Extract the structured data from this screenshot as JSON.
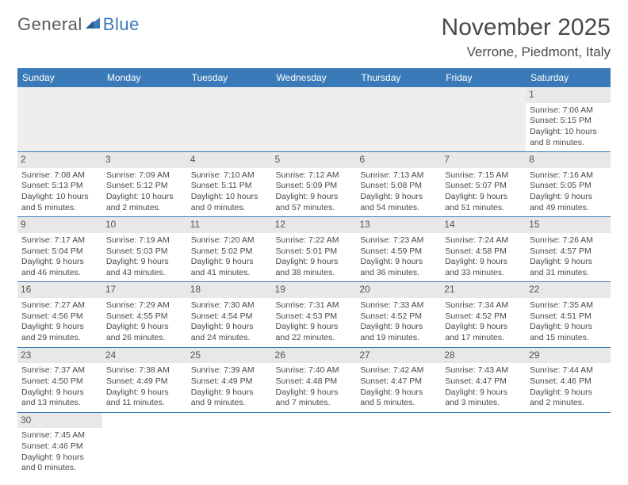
{
  "logo": {
    "text_a": "General",
    "text_b": "Blue"
  },
  "title": "November 2025",
  "location": "Verrone, Piedmont, Italy",
  "colors": {
    "accent": "#3a7ab8",
    "header_bg": "#3a7ab8",
    "daynum_bg": "#e8e8e8",
    "text": "#4a4a4a"
  },
  "weekdays": [
    "Sunday",
    "Monday",
    "Tuesday",
    "Wednesday",
    "Thursday",
    "Friday",
    "Saturday"
  ],
  "weeks": [
    [
      null,
      null,
      null,
      null,
      null,
      null,
      {
        "n": "1",
        "sr": "Sunrise: 7:06 AM",
        "ss": "Sunset: 5:15 PM",
        "dl": "Daylight: 10 hours and 8 minutes."
      }
    ],
    [
      {
        "n": "2",
        "sr": "Sunrise: 7:08 AM",
        "ss": "Sunset: 5:13 PM",
        "dl": "Daylight: 10 hours and 5 minutes."
      },
      {
        "n": "3",
        "sr": "Sunrise: 7:09 AM",
        "ss": "Sunset: 5:12 PM",
        "dl": "Daylight: 10 hours and 2 minutes."
      },
      {
        "n": "4",
        "sr": "Sunrise: 7:10 AM",
        "ss": "Sunset: 5:11 PM",
        "dl": "Daylight: 10 hours and 0 minutes."
      },
      {
        "n": "5",
        "sr": "Sunrise: 7:12 AM",
        "ss": "Sunset: 5:09 PM",
        "dl": "Daylight: 9 hours and 57 minutes."
      },
      {
        "n": "6",
        "sr": "Sunrise: 7:13 AM",
        "ss": "Sunset: 5:08 PM",
        "dl": "Daylight: 9 hours and 54 minutes."
      },
      {
        "n": "7",
        "sr": "Sunrise: 7:15 AM",
        "ss": "Sunset: 5:07 PM",
        "dl": "Daylight: 9 hours and 51 minutes."
      },
      {
        "n": "8",
        "sr": "Sunrise: 7:16 AM",
        "ss": "Sunset: 5:05 PM",
        "dl": "Daylight: 9 hours and 49 minutes."
      }
    ],
    [
      {
        "n": "9",
        "sr": "Sunrise: 7:17 AM",
        "ss": "Sunset: 5:04 PM",
        "dl": "Daylight: 9 hours and 46 minutes."
      },
      {
        "n": "10",
        "sr": "Sunrise: 7:19 AM",
        "ss": "Sunset: 5:03 PM",
        "dl": "Daylight: 9 hours and 43 minutes."
      },
      {
        "n": "11",
        "sr": "Sunrise: 7:20 AM",
        "ss": "Sunset: 5:02 PM",
        "dl": "Daylight: 9 hours and 41 minutes."
      },
      {
        "n": "12",
        "sr": "Sunrise: 7:22 AM",
        "ss": "Sunset: 5:01 PM",
        "dl": "Daylight: 9 hours and 38 minutes."
      },
      {
        "n": "13",
        "sr": "Sunrise: 7:23 AM",
        "ss": "Sunset: 4:59 PM",
        "dl": "Daylight: 9 hours and 36 minutes."
      },
      {
        "n": "14",
        "sr": "Sunrise: 7:24 AM",
        "ss": "Sunset: 4:58 PM",
        "dl": "Daylight: 9 hours and 33 minutes."
      },
      {
        "n": "15",
        "sr": "Sunrise: 7:26 AM",
        "ss": "Sunset: 4:57 PM",
        "dl": "Daylight: 9 hours and 31 minutes."
      }
    ],
    [
      {
        "n": "16",
        "sr": "Sunrise: 7:27 AM",
        "ss": "Sunset: 4:56 PM",
        "dl": "Daylight: 9 hours and 29 minutes."
      },
      {
        "n": "17",
        "sr": "Sunrise: 7:29 AM",
        "ss": "Sunset: 4:55 PM",
        "dl": "Daylight: 9 hours and 26 minutes."
      },
      {
        "n": "18",
        "sr": "Sunrise: 7:30 AM",
        "ss": "Sunset: 4:54 PM",
        "dl": "Daylight: 9 hours and 24 minutes."
      },
      {
        "n": "19",
        "sr": "Sunrise: 7:31 AM",
        "ss": "Sunset: 4:53 PM",
        "dl": "Daylight: 9 hours and 22 minutes."
      },
      {
        "n": "20",
        "sr": "Sunrise: 7:33 AM",
        "ss": "Sunset: 4:52 PM",
        "dl": "Daylight: 9 hours and 19 minutes."
      },
      {
        "n": "21",
        "sr": "Sunrise: 7:34 AM",
        "ss": "Sunset: 4:52 PM",
        "dl": "Daylight: 9 hours and 17 minutes."
      },
      {
        "n": "22",
        "sr": "Sunrise: 7:35 AM",
        "ss": "Sunset: 4:51 PM",
        "dl": "Daylight: 9 hours and 15 minutes."
      }
    ],
    [
      {
        "n": "23",
        "sr": "Sunrise: 7:37 AM",
        "ss": "Sunset: 4:50 PM",
        "dl": "Daylight: 9 hours and 13 minutes."
      },
      {
        "n": "24",
        "sr": "Sunrise: 7:38 AM",
        "ss": "Sunset: 4:49 PM",
        "dl": "Daylight: 9 hours and 11 minutes."
      },
      {
        "n": "25",
        "sr": "Sunrise: 7:39 AM",
        "ss": "Sunset: 4:49 PM",
        "dl": "Daylight: 9 hours and 9 minutes."
      },
      {
        "n": "26",
        "sr": "Sunrise: 7:40 AM",
        "ss": "Sunset: 4:48 PM",
        "dl": "Daylight: 9 hours and 7 minutes."
      },
      {
        "n": "27",
        "sr": "Sunrise: 7:42 AM",
        "ss": "Sunset: 4:47 PM",
        "dl": "Daylight: 9 hours and 5 minutes."
      },
      {
        "n": "28",
        "sr": "Sunrise: 7:43 AM",
        "ss": "Sunset: 4:47 PM",
        "dl": "Daylight: 9 hours and 3 minutes."
      },
      {
        "n": "29",
        "sr": "Sunrise: 7:44 AM",
        "ss": "Sunset: 4:46 PM",
        "dl": "Daylight: 9 hours and 2 minutes."
      }
    ],
    [
      {
        "n": "30",
        "sr": "Sunrise: 7:45 AM",
        "ss": "Sunset: 4:46 PM",
        "dl": "Daylight: 9 hours and 0 minutes."
      },
      null,
      null,
      null,
      null,
      null,
      null
    ]
  ]
}
